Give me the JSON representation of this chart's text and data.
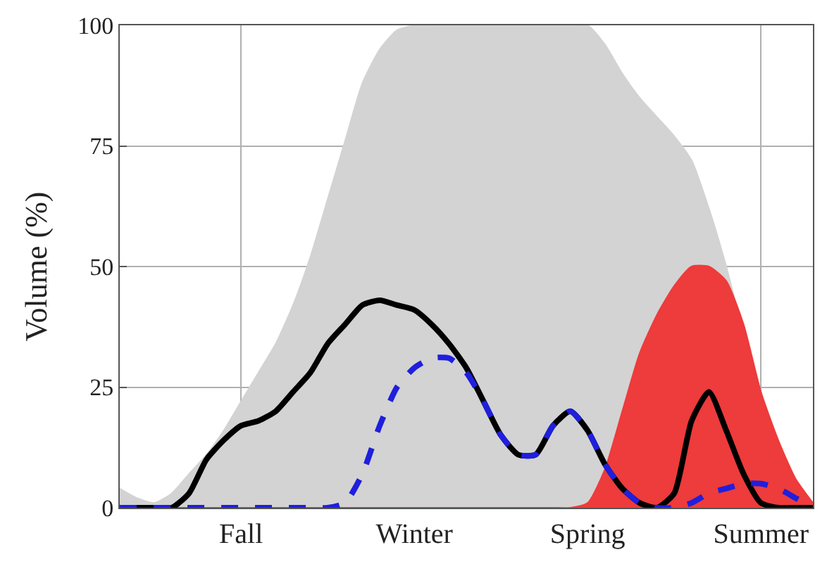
{
  "chart_data": {
    "type": "area",
    "ylabel": "Volume (%)",
    "categories": [
      null,
      null,
      null,
      null,
      null,
      null,
      null,
      "Fall",
      null,
      null,
      null,
      null,
      null,
      null,
      null,
      null,
      null,
      "Winter",
      null,
      null,
      null,
      null,
      null,
      null,
      null,
      null,
      null,
      "Spring",
      null,
      null,
      null,
      null,
      null,
      null,
      null,
      null,
      null,
      "Summer",
      null,
      null,
      null
    ],
    "series": [
      {
        "color": "#d3d3d3",
        "values": [
          4,
          2,
          1,
          3,
          7,
          11,
          16,
          22,
          28,
          34,
          42,
          52,
          64,
          76,
          88,
          95,
          99,
          100,
          100,
          100,
          100,
          100,
          100,
          100,
          100,
          100,
          100,
          100,
          96,
          90,
          85,
          81,
          77,
          72,
          62,
          50,
          36,
          24,
          13,
          5,
          1
        ]
      },
      {
        "color": "#ee3b3b",
        "values": [
          0,
          0,
          0,
          0,
          0,
          0,
          0,
          0,
          0,
          0,
          0,
          0,
          0,
          0,
          0,
          0,
          0,
          0,
          0,
          0,
          0,
          0,
          0,
          0,
          0,
          0,
          0,
          1,
          8,
          20,
          32,
          40,
          46,
          50,
          50,
          47,
          38,
          24,
          14,
          6,
          1
        ]
      },
      {
        "type": "line",
        "color": "#000000",
        "line_style": "solid",
        "values": [
          0,
          0,
          0,
          0,
          3,
          10,
          14,
          17,
          18,
          20,
          24,
          28,
          34,
          38,
          42,
          43,
          42,
          41,
          38,
          34,
          29,
          22,
          15,
          11,
          11,
          17,
          20,
          16,
          9,
          4,
          1,
          0,
          3,
          18,
          24,
          16,
          7,
          1,
          0,
          0,
          0
        ]
      },
      {
        "type": "line",
        "color": "#1f1fdd",
        "line_style": "dashed",
        "values": [
          0,
          0,
          0,
          0,
          0,
          0,
          0,
          0,
          0,
          0,
          0,
          0,
          0,
          1,
          7,
          17,
          25,
          29,
          31,
          31,
          28,
          22,
          15,
          11,
          11,
          17,
          20,
          16,
          9,
          4,
          1,
          0,
          0,
          1,
          3,
          4,
          5,
          5,
          4,
          2,
          0
        ]
      }
    ],
    "ylim": [
      0,
      100
    ],
    "yticks": [
      0,
      25,
      50,
      75,
      100
    ],
    "grid": true
  }
}
